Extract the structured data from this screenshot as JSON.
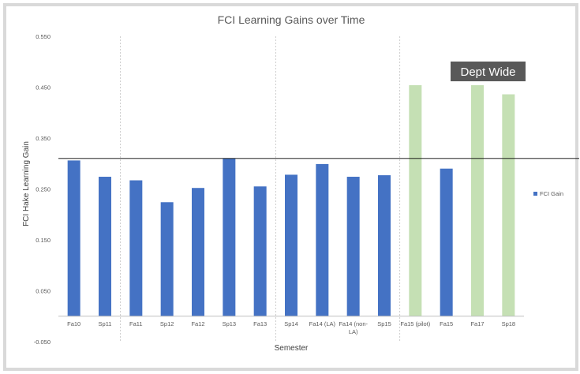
{
  "chart_data": {
    "type": "bar",
    "title": "FCI Learning Gains over Time",
    "xlabel": "Semester",
    "ylabel": "FCI Hake Learning Gain",
    "ylim": [
      -0.05,
      0.55
    ],
    "yticks": [
      "0.550",
      "0.450",
      "0.350",
      "0.250",
      "0.150",
      "0.050",
      "-0.050"
    ],
    "ytick_values": [
      0.55,
      0.45,
      0.35,
      0.25,
      0.15,
      0.05,
      -0.05
    ],
    "categories": [
      "Fa10",
      "Sp11",
      "Fa11",
      "Sp12",
      "Fa12",
      "Sp13",
      "Fa13",
      "Sp14",
      "Fa14 (LA)",
      "Fa14 (non-LA)",
      "Sp15",
      "Fa15 (pilot)",
      "Fa15",
      "Fa17",
      "Sp18"
    ],
    "category_lines": [
      [
        "Fa10"
      ],
      [
        "Sp11"
      ],
      [
        "Fa11"
      ],
      [
        "Sp12"
      ],
      [
        "Fa12"
      ],
      [
        "Sp13"
      ],
      [
        "Fa13"
      ],
      [
        "Sp14"
      ],
      [
        "Fa14 (LA)"
      ],
      [
        "Fa14 (non-",
        "LA)"
      ],
      [
        "Sp15"
      ],
      [
        "Fa15 (pilot)"
      ],
      [
        "Fa15"
      ],
      [
        "Fa17"
      ],
      [
        "Sp18"
      ]
    ],
    "values": [
      0.306,
      0.274,
      0.267,
      0.224,
      0.252,
      0.31,
      0.255,
      0.278,
      0.299,
      0.274,
      0.277,
      0.454,
      0.29,
      0.454,
      0.436
    ],
    "bar_colors": [
      "#4472c4",
      "#4472c4",
      "#4472c4",
      "#4472c4",
      "#4472c4",
      "#4472c4",
      "#4472c4",
      "#4472c4",
      "#4472c4",
      "#4472c4",
      "#4472c4",
      "#c5e0b4",
      "#4472c4",
      "#c5e0b4",
      "#c5e0b4"
    ],
    "series": [
      {
        "name": "FCI Gain",
        "color": "#4472c4"
      }
    ],
    "legend": "right",
    "reference_line": 0.31,
    "group_dividers_after": [
      "Sp11",
      "Fa13",
      "Sp15"
    ],
    "annotation": "Dept Wide"
  }
}
